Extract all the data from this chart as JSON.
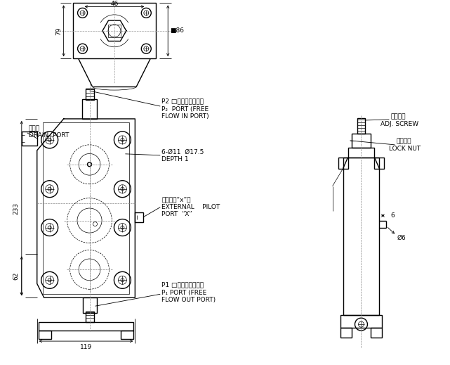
{
  "bg_color": "#ffffff",
  "line_color": "#000000",
  "annotations": {
    "dim_46": "46",
    "dim_79": "79",
    "dim_86": "■86",
    "dim_233": "233",
    "dim_62": "62",
    "dim_119": "119",
    "dim_6": "6",
    "dim_phi6": "Ø6",
    "label_drain_jp": "漩流口",
    "label_drain_en": "DRAIN  PORT",
    "label_p2_jp": "P2 □（自由流入口）",
    "label_p2_en1": "P₂  PORT (FREE",
    "label_p2_en2": "FLOW IN PORT)",
    "label_hole": "6-Ø11  Ø17.5",
    "label_depth": "DEPTH 1",
    "label_ext_jp": "外部引導“x”口",
    "label_ext_en1": "EXTERNAL    PILOT",
    "label_ext_en2": "PORT  “X”",
    "label_p1_jp": "P1 □（自由流出口）",
    "label_p1_en1": "P₁ PORT (FREE",
    "label_p1_en2": "FLOW OUT PORT)",
    "label_adjscrew_jp": "調節螺絲",
    "label_adjscrew_en": "ADJ. SCREW",
    "label_locknut_jp": "固定螺帽",
    "label_locknut_en": "LOCK NUT"
  }
}
